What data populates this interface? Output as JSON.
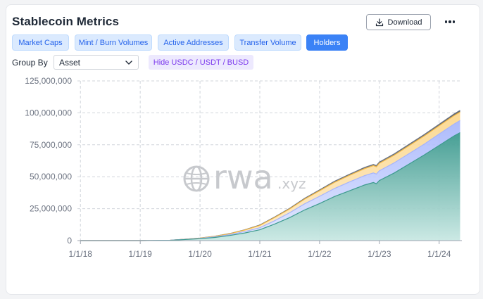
{
  "header": {
    "title": "Stablecoin Metrics",
    "download_label": "Download"
  },
  "tabs": [
    {
      "label": "Market Caps",
      "active": false
    },
    {
      "label": "Mint / Burn Volumes",
      "active": false
    },
    {
      "label": "Active Addresses",
      "active": false
    },
    {
      "label": "Transfer Volume",
      "active": false
    },
    {
      "label": "Holders",
      "active": true
    }
  ],
  "controls": {
    "group_by_label": "Group By",
    "group_by_value": "Asset",
    "hide_toggle_label": "Hide USDC / USDT / BUSD"
  },
  "watermark": {
    "brand": "rwa",
    "domain": ".xyz"
  },
  "colors": {
    "accent": "#3b82f6",
    "series_1": "#3d9a8f",
    "series_2": "#a5b4fc",
    "series_3": "#fcd68a",
    "series_4": "#6b7280"
  },
  "chart_data": {
    "type": "area",
    "stacked": true,
    "grid": true,
    "y_tick_labels": [
      "0",
      "25,000,000",
      "50,000,000",
      "75,000,000",
      "100,000,000",
      "125,000,000"
    ],
    "y_ticks": [
      0,
      25000000,
      50000000,
      75000000,
      100000000,
      125000000
    ],
    "ylim": [
      0,
      125000000
    ],
    "x_tick_labels": [
      "1/1/18",
      "1/1/19",
      "1/1/20",
      "1/1/21",
      "1/1/22",
      "1/1/23",
      "1/1/24"
    ],
    "x_ticks": [
      2018.0,
      2019.0,
      2020.0,
      2021.0,
      2022.0,
      2023.0,
      2024.0
    ],
    "xlim": [
      2017.95,
      2024.38
    ],
    "x": [
      2018.0,
      2018.5,
      2019.0,
      2019.5,
      2020.0,
      2020.25,
      2020.5,
      2020.75,
      2021.0,
      2021.25,
      2021.5,
      2021.75,
      2022.0,
      2022.25,
      2022.5,
      2022.75,
      2022.9,
      2022.95,
      2023.0,
      2023.25,
      2023.5,
      2023.75,
      2024.0,
      2024.25,
      2024.35
    ],
    "series": [
      {
        "values": [
          0,
          0,
          0,
          200000,
          1500000,
          2500000,
          4000000,
          6000000,
          8500000,
          13000000,
          18000000,
          24000000,
          29000000,
          34500000,
          39000000,
          43500000,
          45500000,
          44500000,
          47000000,
          53000000,
          60000000,
          67000000,
          74500000,
          82000000,
          84500000
        ]
      },
      {
        "values": [
          0,
          0,
          0,
          50000,
          250000,
          450000,
          700000,
          1100000,
          1600000,
          2600000,
          3800000,
          4800000,
          5700000,
          6300000,
          6900000,
          7300000,
          7500000,
          7600000,
          7700000,
          7900000,
          8200000,
          8500000,
          8900000,
          9300000,
          9500000
        ]
      },
      {
        "values": [
          0,
          0,
          0,
          30000,
          200000,
          400000,
          700000,
          1200000,
          1800000,
          2500000,
          3000000,
          3700000,
          4300000,
          4800000,
          5200000,
          5500000,
          5700000,
          5700000,
          5800000,
          6000000,
          6200000,
          6400000,
          6500000,
          6600000,
          6600000
        ]
      },
      {
        "values": [
          0,
          0,
          0,
          10000,
          50000,
          100000,
          150000,
          200000,
          300000,
          400000,
          500000,
          600000,
          700000,
          800000,
          850000,
          900000,
          950000,
          950000,
          1000000,
          1050000,
          1100000,
          1150000,
          1200000,
          1250000,
          1300000
        ]
      }
    ]
  }
}
